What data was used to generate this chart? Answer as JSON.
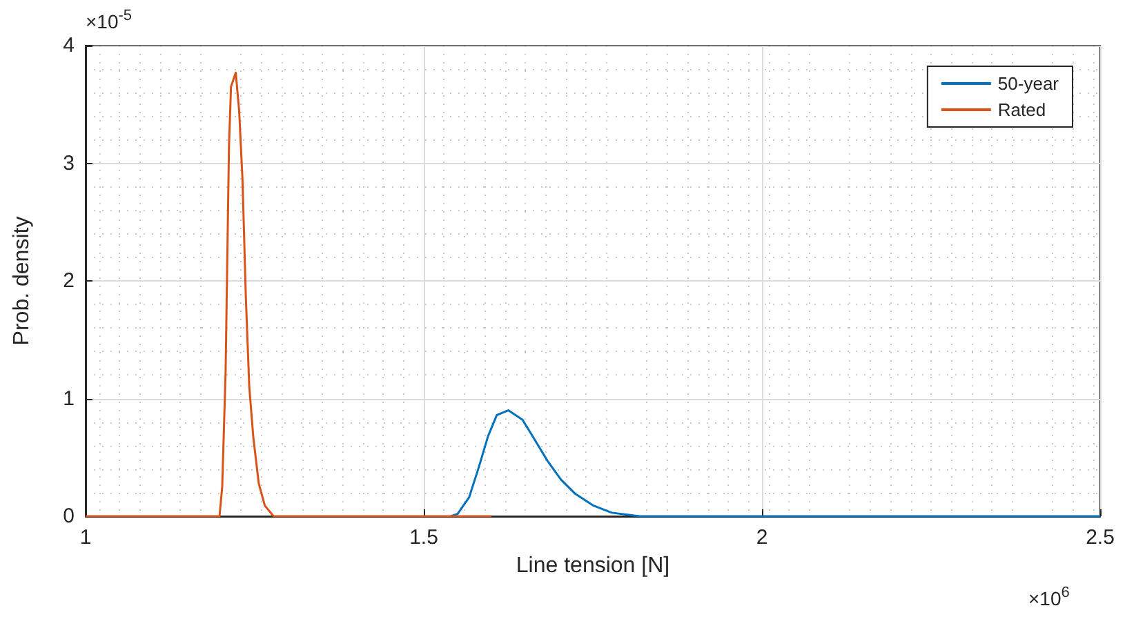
{
  "chart_data": {
    "type": "line",
    "xlabel": "Line tension [N]",
    "ylabel": "Prob. density",
    "annotations": [
      "×10$^{-5}$",
      "×10$^{6}$"
    ],
    "xlim": [
      1,
      2.5
    ],
    "xticks": [
      1,
      1.5,
      2,
      2.5
    ],
    "ylim": [
      0,
      4
    ],
    "yticks": [
      0,
      1,
      2,
      3,
      4
    ],
    "grid": true,
    "legend": "top right",
    "marker": "none",
    "line_style": "solid",
    "series": [
      {
        "name": "50-year",
        "color": "#0072bd",
        "x": [
          1.54,
          1.55,
          1.567,
          1.581,
          1.595,
          1.608,
          1.625,
          1.646,
          1.663,
          1.683,
          1.703,
          1.724,
          1.751,
          1.778,
          1.805,
          1.819,
          2.5
        ],
        "values": [
          0,
          0.02,
          0.16,
          0.41,
          0.68,
          0.86,
          0.9,
          0.82,
          0.66,
          0.47,
          0.31,
          0.19,
          0.09,
          0.03,
          0.01,
          0,
          0
        ]
      },
      {
        "name": "Rated",
        "color": "#d95319",
        "x": [
          1,
          1.198,
          1.202,
          1.207,
          1.212,
          1.215,
          1.222,
          1.227,
          1.232,
          1.237,
          1.242,
          1.248,
          1.256,
          1.265,
          1.278,
          1.6
        ],
        "values": [
          0,
          0,
          0.25,
          1.22,
          3.14,
          3.65,
          3.77,
          3.45,
          2.86,
          1.85,
          1.1,
          0.67,
          0.28,
          0.09,
          0,
          0
        ]
      }
    ]
  }
}
